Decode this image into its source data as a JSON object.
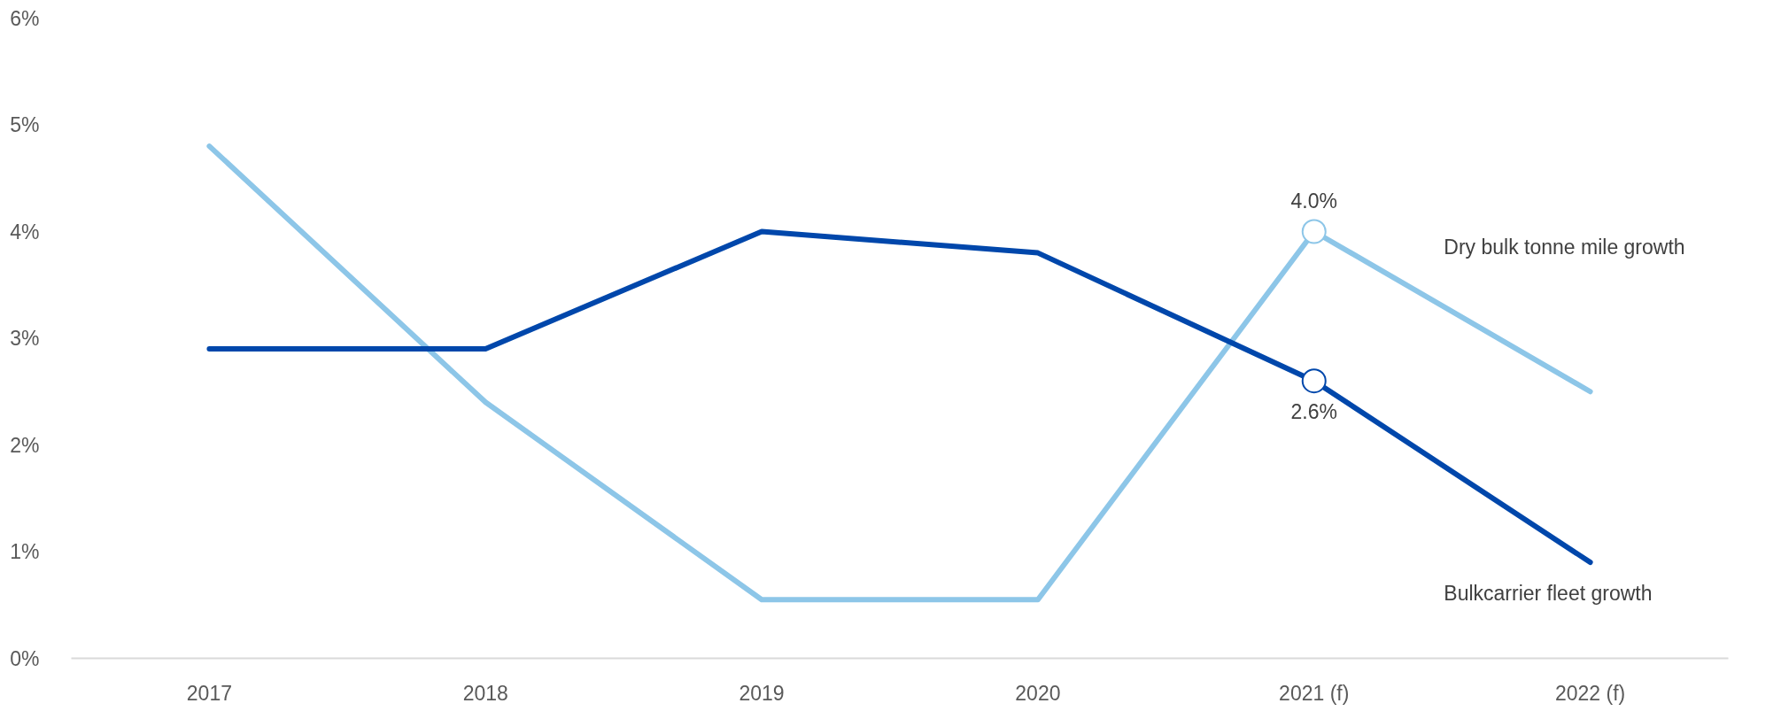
{
  "chart_data": {
    "type": "line",
    "categories": [
      "2017",
      "2018",
      "2019",
      "2020",
      "2021 (f)",
      "2022 (f)"
    ],
    "series": [
      {
        "name": "Dry bulk tonne mile growth",
        "color": "#8dc6e8",
        "values": [
          4.8,
          2.4,
          0.55,
          0.55,
          4.0,
          2.5
        ],
        "value_labels": [
          null,
          null,
          null,
          null,
          "4.0%",
          null
        ]
      },
      {
        "name": "Bulkcarrier fleet growth",
        "color": "#0047ab",
        "values": [
          2.9,
          2.9,
          4.0,
          3.8,
          2.6,
          0.9
        ],
        "value_labels": [
          null,
          null,
          null,
          null,
          "2.6%",
          null
        ]
      }
    ],
    "ylim": [
      0,
      6
    ],
    "yticks": [
      {
        "value": 0,
        "label": "0%"
      },
      {
        "value": 1,
        "label": "1%"
      },
      {
        "value": 2,
        "label": "2%"
      },
      {
        "value": 3,
        "label": "3%"
      },
      {
        "value": 4,
        "label": "4%"
      },
      {
        "value": 5,
        "label": "5%"
      },
      {
        "value": 6,
        "label": "6%"
      }
    ],
    "grid": false
  }
}
